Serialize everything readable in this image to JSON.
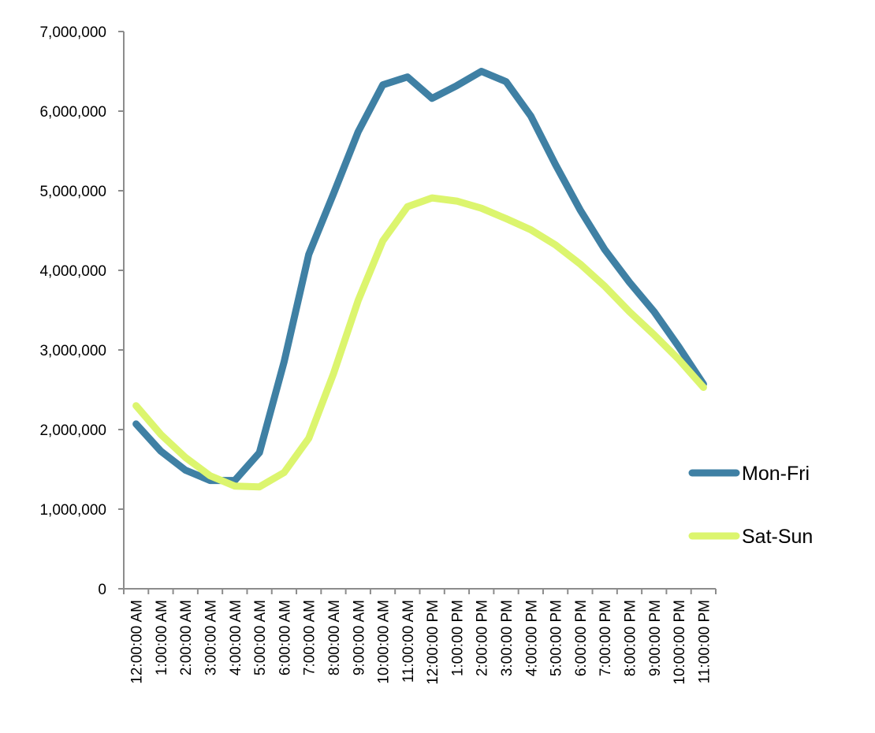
{
  "chart_data": {
    "type": "line",
    "title": "",
    "xlabel": "",
    "ylabel": "",
    "categories": [
      "12:00:00 AM",
      "1:00:00 AM",
      "2:00:00 AM",
      "3:00:00 AM",
      "4:00:00 AM",
      "5:00:00 AM",
      "6:00:00 AM",
      "7:00:00 AM",
      "8:00:00 AM",
      "9:00:00 AM",
      "10:00:00 AM",
      "11:00:00 AM",
      "12:00:00 PM",
      "1:00:00 PM",
      "2:00:00 PM",
      "3:00:00 PM",
      "4:00:00 PM",
      "5:00:00 PM",
      "6:00:00 PM",
      "7:00:00 PM",
      "8:00:00 PM",
      "9:00:00 PM",
      "10:00:00 PM",
      "11:00:00 PM"
    ],
    "ylim": [
      0,
      7000000
    ],
    "yticks": [
      0,
      1000000,
      2000000,
      3000000,
      4000000,
      5000000,
      6000000,
      7000000
    ],
    "ytick_labels": [
      "0",
      "1,000,000",
      "2,000,000",
      "3,000,000",
      "4,000,000",
      "5,000,000",
      "6,000,000",
      "7,000,000"
    ],
    "grid": false,
    "legend_position": "right",
    "series": [
      {
        "name": "Mon-Fri",
        "color": "#3f80a4",
        "values": [
          2070000,
          1730000,
          1490000,
          1360000,
          1360000,
          1710000,
          2850000,
          4200000,
          4960000,
          5740000,
          6330000,
          6430000,
          6160000,
          6320000,
          6500000,
          6370000,
          5940000,
          5330000,
          4760000,
          4260000,
          3850000,
          3480000,
          3040000,
          2570000
        ]
      },
      {
        "name": "Sat-Sun",
        "color": "#dcf56e",
        "values": [
          2300000,
          1940000,
          1650000,
          1420000,
          1290000,
          1280000,
          1460000,
          1890000,
          2700000,
          3620000,
          4370000,
          4800000,
          4910000,
          4870000,
          4780000,
          4650000,
          4510000,
          4320000,
          4080000,
          3800000,
          3480000,
          3190000,
          2880000,
          2530000
        ]
      }
    ]
  }
}
